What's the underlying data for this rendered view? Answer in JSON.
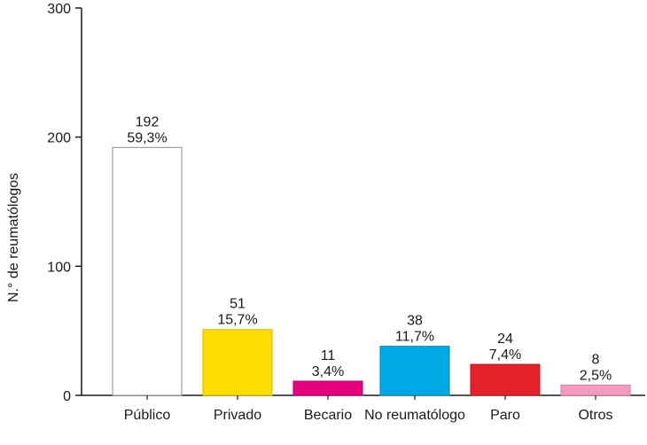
{
  "chart_data": {
    "type": "bar",
    "title": "",
    "xlabel": "",
    "ylabel": "N.° de reumatólogos",
    "ylim": [
      0,
      300
    ],
    "yticks": [
      "0",
      "100",
      "200",
      "300"
    ],
    "grid": false,
    "categories": [
      "Público",
      "Privado",
      "Becario",
      "No reumatólogo",
      "Paro",
      "Otros"
    ],
    "values": [
      192,
      51,
      11,
      38,
      24,
      8
    ],
    "percent_labels": [
      "59,3%",
      "15,7%",
      "3,4%",
      "11,7%",
      "7,4%",
      "2,5%"
    ],
    "colors": [
      "#ffffff",
      "#ffdd00",
      "#e5007e",
      "#00a8e6",
      "#e4202a",
      "#f49ac1"
    ],
    "stroke_colors": [
      "#8c8c8c",
      "#d9b800",
      "#b8006a",
      "#0088bb",
      "#b81820",
      "#d07fa3"
    ]
  }
}
